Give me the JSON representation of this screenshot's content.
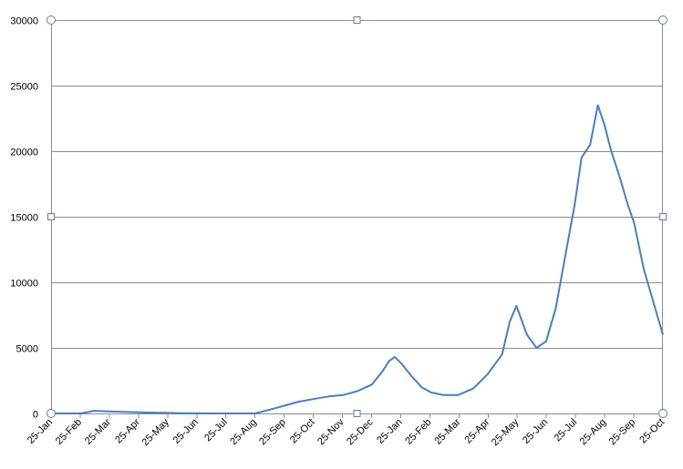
{
  "chart_data": {
    "type": "line",
    "title": "",
    "xlabel": "",
    "ylabel": "",
    "ylim": [
      0,
      30000
    ],
    "yticks": [
      "0",
      "5000",
      "10000",
      "15000",
      "20000",
      "25000",
      "30000"
    ],
    "ytick_values": [
      0,
      5000,
      10000,
      15000,
      20000,
      25000,
      30000
    ],
    "grid": "horizontal",
    "legend": "none",
    "x_start": "2020-01-25",
    "x_end": "2021-10-25",
    "categories": [
      "25-Jan",
      "25-Feb",
      "25-Mar",
      "25-Apr",
      "25-May",
      "25-Jun",
      "25-Jul",
      "25-Aug",
      "25-Sep",
      "25-Oct",
      "25-Nov",
      "25-Dec",
      "25-Jan",
      "25-Feb",
      "25-Mar",
      "25-Apr",
      "25-May",
      "25-Jun",
      "25-Jul",
      "25-Aug",
      "25-Sep",
      "25-Oct"
    ],
    "series": [
      {
        "color": "#4a7ebb",
        "x": [
          "2020-01-25",
          "2020-02-25",
          "2020-03-10",
          "2020-03-25",
          "2020-04-10",
          "2020-04-25",
          "2020-05-10",
          "2020-05-25",
          "2020-06-10",
          "2020-06-25",
          "2020-07-25",
          "2020-08-25",
          "2020-09-10",
          "2020-09-25",
          "2020-10-10",
          "2020-10-25",
          "2020-11-10",
          "2020-11-25",
          "2020-12-10",
          "2020-12-25",
          "2021-01-05",
          "2021-01-12",
          "2021-01-18",
          "2021-01-25",
          "2021-02-05",
          "2021-02-15",
          "2021-02-25",
          "2021-03-10",
          "2021-03-25",
          "2021-04-10",
          "2021-04-25",
          "2021-05-10",
          "2021-05-18",
          "2021-05-25",
          "2021-06-05",
          "2021-06-15",
          "2021-06-25",
          "2021-07-05",
          "2021-07-15",
          "2021-07-25",
          "2021-08-01",
          "2021-08-10",
          "2021-08-18",
          "2021-08-25",
          "2021-09-01",
          "2021-09-10",
          "2021-09-18",
          "2021-09-25",
          "2021-10-05",
          "2021-10-15",
          "2021-10-25"
        ],
        "values": [
          0,
          0,
          200,
          150,
          120,
          80,
          60,
          40,
          20,
          10,
          0,
          0,
          300,
          600,
          900,
          1100,
          1300,
          1400,
          1700,
          2200,
          3200,
          4000,
          4300,
          3800,
          2800,
          2000,
          1600,
          1400,
          1400,
          1900,
          3000,
          4500,
          7000,
          8200,
          6000,
          5000,
          5500,
          8000,
          12000,
          16000,
          19500,
          20500,
          23500,
          22000,
          20000,
          18000,
          16000,
          14500,
          11000,
          8500,
          6000
        ]
      }
    ]
  }
}
